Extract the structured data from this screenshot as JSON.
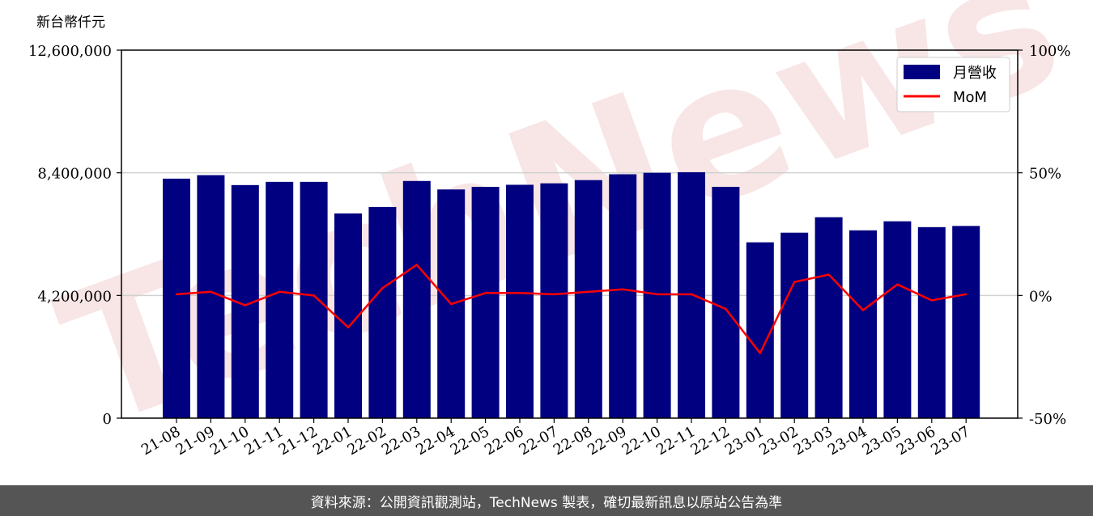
{
  "chart_data": {
    "type": "bar+line",
    "y_unit_label": "新台幣仟元",
    "categories": [
      "21-08",
      "21-09",
      "21-10",
      "21-11",
      "21-12",
      "22-01",
      "22-02",
      "22-03",
      "22-04",
      "22-05",
      "22-06",
      "22-07",
      "22-08",
      "22-09",
      "22-10",
      "22-11",
      "22-12",
      "23-01",
      "23-02",
      "23-03",
      "23-04",
      "23-05",
      "23-06",
      "23-07"
    ],
    "series": [
      {
        "name": "月營收",
        "kind": "bar",
        "axis": "left",
        "color": "#000080",
        "values": [
          8200000,
          8320000,
          7980000,
          8090000,
          8090000,
          7010000,
          7230000,
          8120000,
          7830000,
          7920000,
          7990000,
          8040000,
          8150000,
          8350000,
          8400000,
          8420000,
          7920000,
          6020000,
          6350000,
          6880000,
          6430000,
          6740000,
          6540000,
          6580000
        ]
      },
      {
        "name": "MoM",
        "kind": "line",
        "axis": "right",
        "color": "#ff0000",
        "values": [
          0.5,
          1.5,
          -4.0,
          1.5,
          0,
          -13.0,
          3.0,
          12.5,
          -3.5,
          1.0,
          1.0,
          0.5,
          1.5,
          2.5,
          0.5,
          0.5,
          -5.5,
          -23.5,
          5.5,
          8.5,
          -6.0,
          4.5,
          -2.0,
          0.5
        ]
      }
    ],
    "y_left": {
      "min": 0,
      "max": 12600000,
      "ticks": [
        "0",
        "4,200,000",
        "8,400,000",
        "12,600,000"
      ]
    },
    "y_right": {
      "min": -50,
      "max": 100,
      "ticks": [
        "-50%",
        "0%",
        "50%",
        "100%"
      ]
    },
    "grid": "horizontal",
    "legend_position": "top-right"
  },
  "watermark_text": "TechNews",
  "footer": {
    "source_text": "資料來源：公開資訊觀測站，TechNews 製表，確切最新訊息以原站公告為準"
  }
}
